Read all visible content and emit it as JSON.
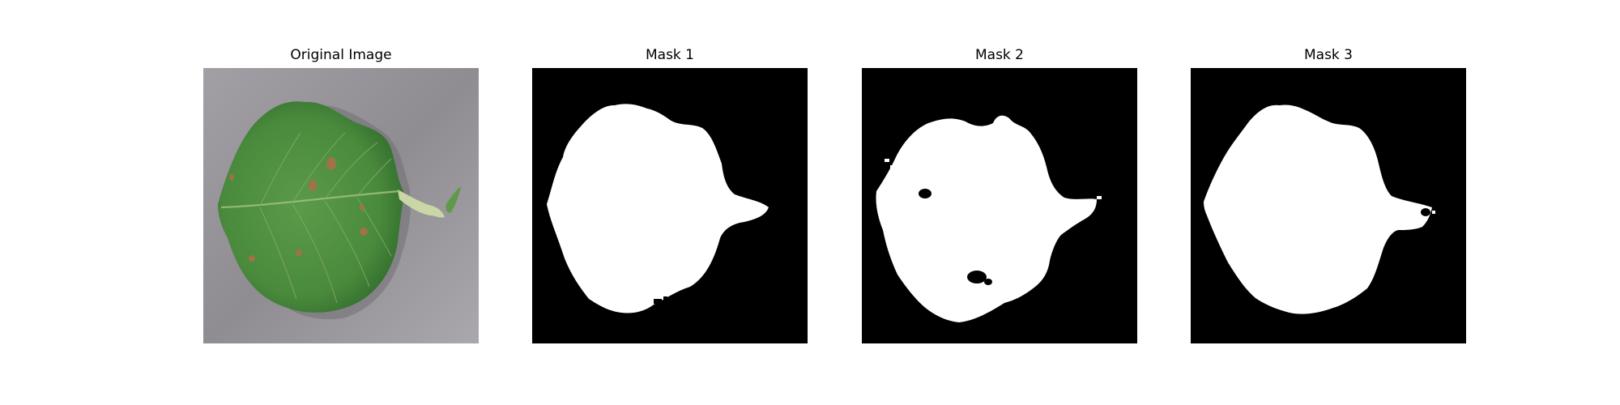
{
  "figure": {
    "panels": [
      {
        "title": "Original Image",
        "content": "green apple leaf with brown spots on grey background"
      },
      {
        "title": "Mask 1",
        "content": "binary segmentation mask"
      },
      {
        "title": "Mask 2",
        "content": "binary segmentation mask"
      },
      {
        "title": "Mask 3",
        "content": "binary segmentation mask"
      }
    ]
  },
  "colors": {
    "background": "#ffffff",
    "mask_foreground": "#ffffff",
    "mask_background": "#000000",
    "leaf_green": "#4f8f3f",
    "leaf_dark": "#2f6b2c",
    "surface_grey": "#9a979d",
    "spot_brown": "#a8704a"
  }
}
